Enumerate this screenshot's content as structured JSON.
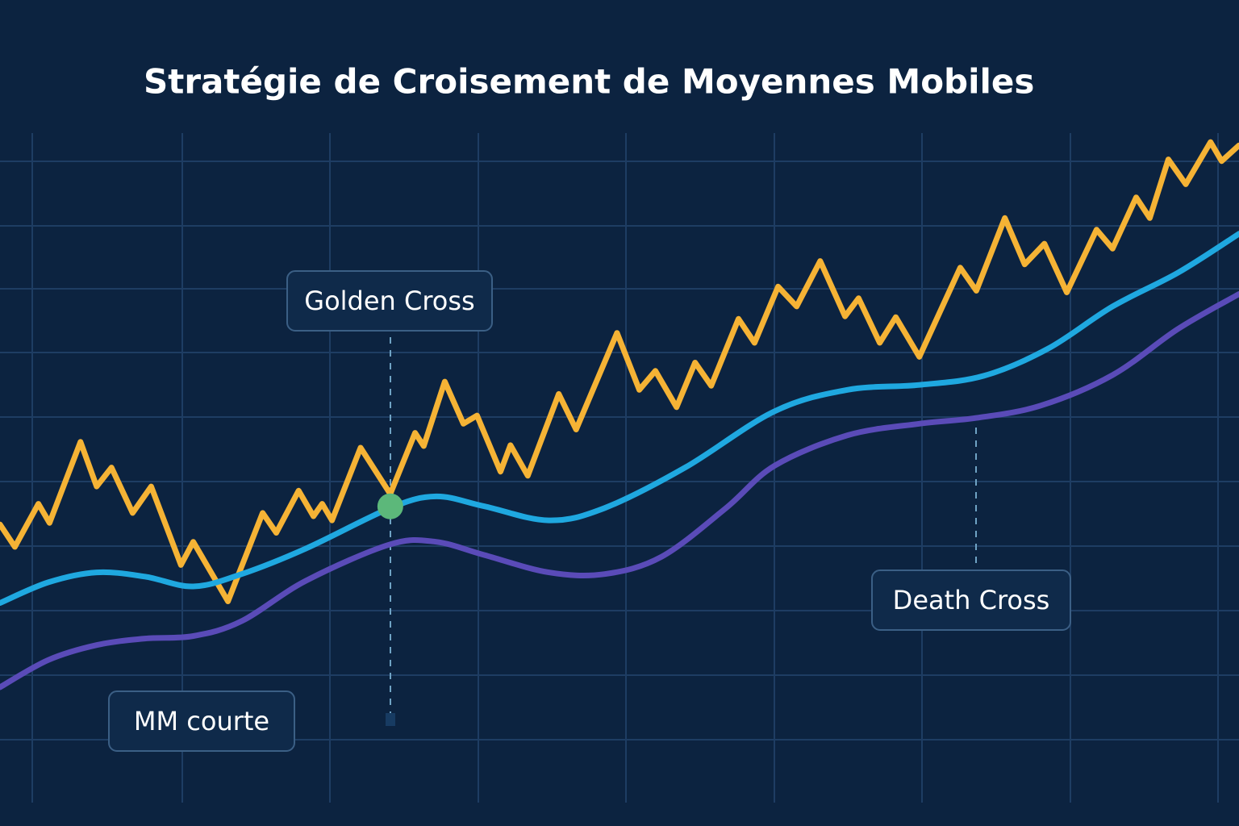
{
  "chart_data": {
    "type": "line",
    "title": "Stratégie de Croisement de Moyennes Mobiles",
    "xlim": [
      0,
      100
    ],
    "ylim": [
      0,
      100
    ],
    "series": [
      {
        "color": "#f5b335",
        "x": [
          0,
          1.2,
          3.1,
          4.0,
          6.5,
          7.8,
          9.0,
          10.7,
          12.2,
          14.6,
          15.6,
          18.4,
          21.2,
          22.3,
          24.1,
          25.3,
          26.0,
          26.8,
          29.1,
          31.5,
          33.5,
          34.2,
          35.9,
          37.4,
          38.5,
          40.4,
          41.2,
          42.6,
          45.1,
          46.5,
          49.8,
          51.6,
          52.9,
          54.6,
          56.1,
          57.4,
          59.6,
          60.9,
          62.8,
          64.3,
          66.2,
          68.2,
          69.3,
          71.0,
          72.3,
          74.2,
          77.5,
          78.8,
          81.1,
          82.7,
          84.3,
          86.1,
          88.5,
          89.8,
          91.7,
          92.8,
          94.3,
          95.7,
          97.7,
          98.6,
          100
        ],
        "values": [
          36.5,
          33.8,
          39.0,
          36.7,
          46.5,
          41.1,
          43.4,
          37.9,
          41.1,
          31.6,
          34.4,
          27.2,
          37.9,
          35.5,
          40.6,
          37.5,
          39.0,
          37.0,
          45.8,
          40.2,
          47.6,
          46.0,
          53.8,
          48.7,
          49.7,
          42.9,
          46.1,
          42.4,
          52.3,
          48.0,
          59.7,
          52.8,
          55.1,
          50.7,
          56.1,
          53.3,
          61.4,
          58.5,
          65.3,
          62.9,
          68.4,
          61.7,
          63.9,
          58.5,
          61.6,
          56.8,
          67.6,
          64.8,
          73.6,
          68.0,
          70.5,
          64.6,
          72.2,
          69.9,
          76.1,
          73.6,
          80.7,
          77.7,
          82.8,
          80.5,
          82.4
        ]
      },
      {
        "color": "#1fa8e0",
        "x": [
          0,
          3.9,
          7.8,
          11.7,
          15.6,
          19.5,
          24.7,
          31.5,
          35.2,
          39.1,
          44.3,
          48.8,
          55.3,
          62.5,
          68.4,
          74.2,
          79.4,
          84.6,
          89.8,
          95.1,
          100
        ],
        "values": [
          27.0,
          29.5,
          30.7,
          30.2,
          29.0,
          30.5,
          33.6,
          38.5,
          39.9,
          38.7,
          37.0,
          38.5,
          43.4,
          50.2,
          52.8,
          53.4,
          54.5,
          57.8,
          62.9,
          67.0,
          71.7
        ]
      },
      {
        "color": "#5a4bb8",
        "x": [
          0,
          3.9,
          7.8,
          11.7,
          15.6,
          19.5,
          24.7,
          31.5,
          35.2,
          39.1,
          44.3,
          48.8,
          53.4,
          58.6,
          62.5,
          68.4,
          74.2,
          78.8,
          84.0,
          89.8,
          95.1,
          100
        ],
        "values": [
          16.8,
          20.1,
          21.9,
          22.7,
          23.0,
          24.8,
          29.7,
          34.1,
          34.4,
          32.8,
          30.7,
          30.5,
          32.6,
          38.5,
          43.6,
          47.3,
          48.7,
          49.4,
          50.9,
          54.6,
          60.2,
          64.4
        ]
      }
    ],
    "markers": [
      {
        "x": 31.5,
        "y": 38.7,
        "color": "#5cb87a"
      }
    ],
    "annotations": [
      "Golden Cross",
      "Death Cross",
      "MM courte"
    ]
  }
}
